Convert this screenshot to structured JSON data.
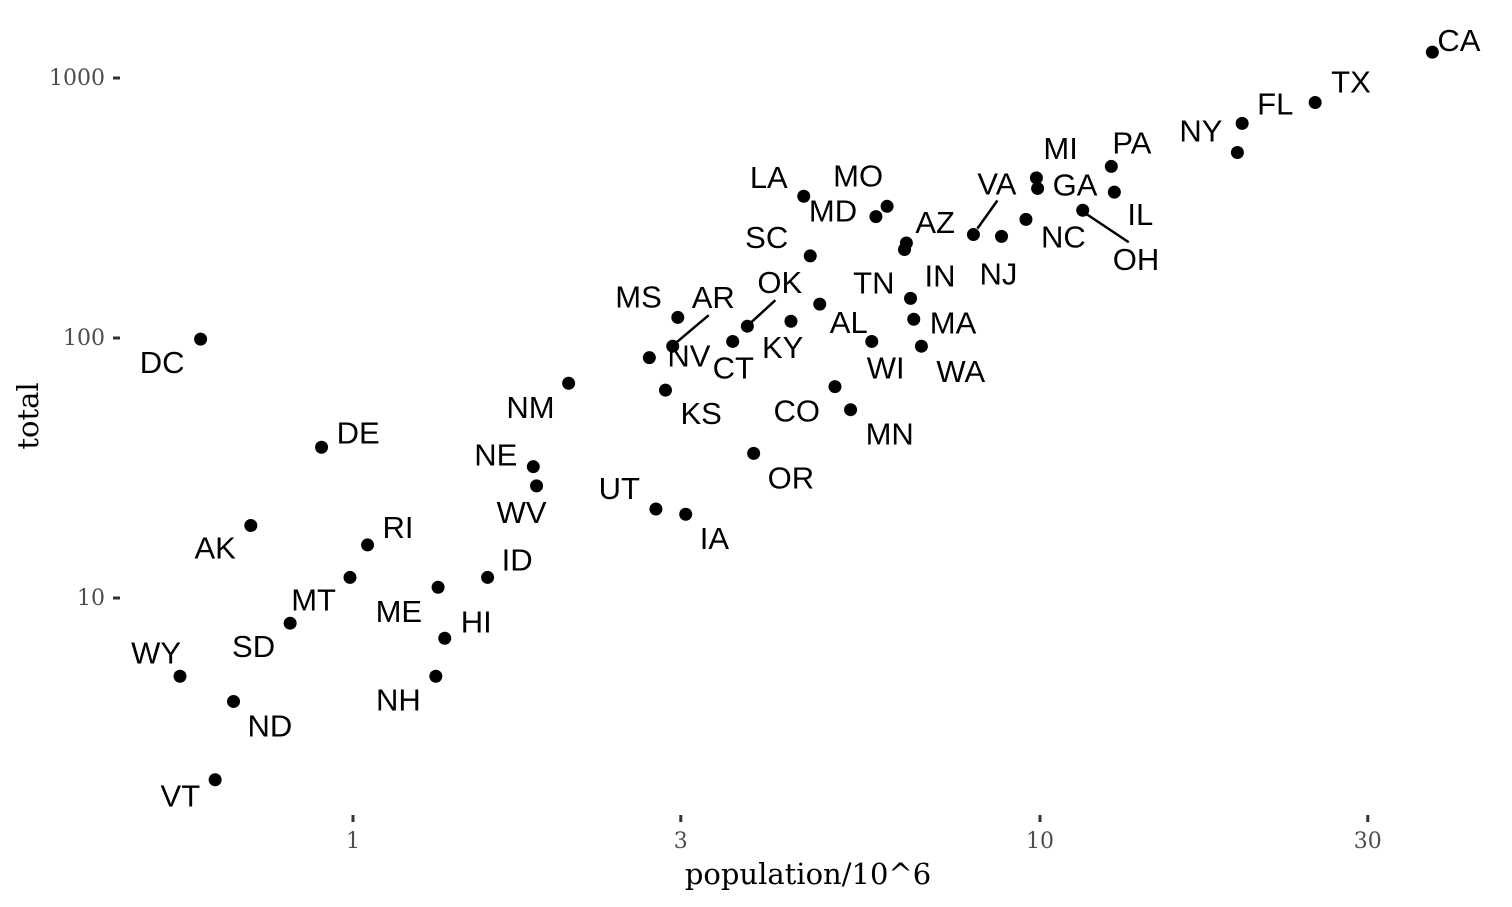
{
  "chart_data": {
    "type": "scatter",
    "title": "",
    "xlabel": "population/10^6",
    "ylabel": "total",
    "x_scale": "log10",
    "y_scale": "log10",
    "x_ticks": [
      1,
      3,
      10,
      30
    ],
    "x_tick_labels": [
      "1",
      "3",
      "10",
      "30"
    ],
    "y_ticks": [
      10,
      100,
      1000
    ],
    "y_tick_labels": [
      "10",
      "100",
      "1000"
    ],
    "xlim": [
      0.5,
      40
    ],
    "ylim": [
      1.6,
      1500
    ],
    "grid": false,
    "point_color": "#000000",
    "points": [
      {
        "label": "CA",
        "x": 37.25,
        "y": 1257
      },
      {
        "label": "TX",
        "x": 25.15,
        "y": 805
      },
      {
        "label": "FL",
        "x": 19.69,
        "y": 669
      },
      {
        "label": "NY",
        "x": 19.38,
        "y": 517
      },
      {
        "label": "PA",
        "x": 12.7,
        "y": 457
      },
      {
        "label": "MI",
        "x": 9.88,
        "y": 413
      },
      {
        "label": "GA",
        "x": 9.92,
        "y": 376
      },
      {
        "label": "IL",
        "x": 12.83,
        "y": 364
      },
      {
        "label": "OH",
        "x": 11.54,
        "y": 310
      },
      {
        "label": "NC",
        "x": 9.54,
        "y": 286
      },
      {
        "label": "VA",
        "x": 8.0,
        "y": 250
      },
      {
        "label": "NJ",
        "x": 8.79,
        "y": 246
      },
      {
        "label": "LA",
        "x": 4.53,
        "y": 351
      },
      {
        "label": "MO",
        "x": 5.99,
        "y": 321
      },
      {
        "label": "MD",
        "x": 5.77,
        "y": 293
      },
      {
        "label": "AZ",
        "x": 6.39,
        "y": 232
      },
      {
        "label": "TN",
        "x": 6.35,
        "y": 219
      },
      {
        "label": "SC",
        "x": 4.63,
        "y": 207
      },
      {
        "label": "IN",
        "x": 6.48,
        "y": 142
      },
      {
        "label": "AL",
        "x": 4.78,
        "y": 135
      },
      {
        "label": "MA",
        "x": 6.55,
        "y": 118
      },
      {
        "label": "KY",
        "x": 4.34,
        "y": 116
      },
      {
        "label": "OK",
        "x": 3.75,
        "y": 111
      },
      {
        "label": "MS",
        "x": 2.97,
        "y": 120
      },
      {
        "label": "WI",
        "x": 5.69,
        "y": 97
      },
      {
        "label": "CT",
        "x": 3.57,
        "y": 97
      },
      {
        "label": "WA",
        "x": 6.72,
        "y": 93
      },
      {
        "label": "AR",
        "x": 2.92,
        "y": 93
      },
      {
        "label": "NV",
        "x": 2.7,
        "y": 84
      },
      {
        "label": "NM",
        "x": 2.06,
        "y": 67
      },
      {
        "label": "KS",
        "x": 2.85,
        "y": 63
      },
      {
        "label": "CO",
        "x": 5.03,
        "y": 65
      },
      {
        "label": "MN",
        "x": 5.3,
        "y": 53
      },
      {
        "label": "OR",
        "x": 3.83,
        "y": 36
      },
      {
        "label": "NE",
        "x": 1.83,
        "y": 32
      },
      {
        "label": "WV",
        "x": 1.85,
        "y": 27
      },
      {
        "label": "UT",
        "x": 2.76,
        "y": 22
      },
      {
        "label": "IA",
        "x": 3.05,
        "y": 21
      },
      {
        "label": "DC",
        "x": 0.6,
        "y": 99
      },
      {
        "label": "DE",
        "x": 0.9,
        "y": 38
      },
      {
        "label": "AK",
        "x": 0.71,
        "y": 19
      },
      {
        "label": "RI",
        "x": 1.05,
        "y": 16
      },
      {
        "label": "ID",
        "x": 1.57,
        "y": 12
      },
      {
        "label": "MT",
        "x": 0.99,
        "y": 12
      },
      {
        "label": "ME",
        "x": 1.33,
        "y": 11
      },
      {
        "label": "HI",
        "x": 1.36,
        "y": 7
      },
      {
        "label": "SD",
        "x": 0.81,
        "y": 8
      },
      {
        "label": "WY",
        "x": 0.56,
        "y": 5
      },
      {
        "label": "NH",
        "x": 1.32,
        "y": 5
      },
      {
        "label": "ND",
        "x": 0.67,
        "y": 4
      },
      {
        "label": "VT",
        "x": 0.63,
        "y": 2
      }
    ]
  }
}
